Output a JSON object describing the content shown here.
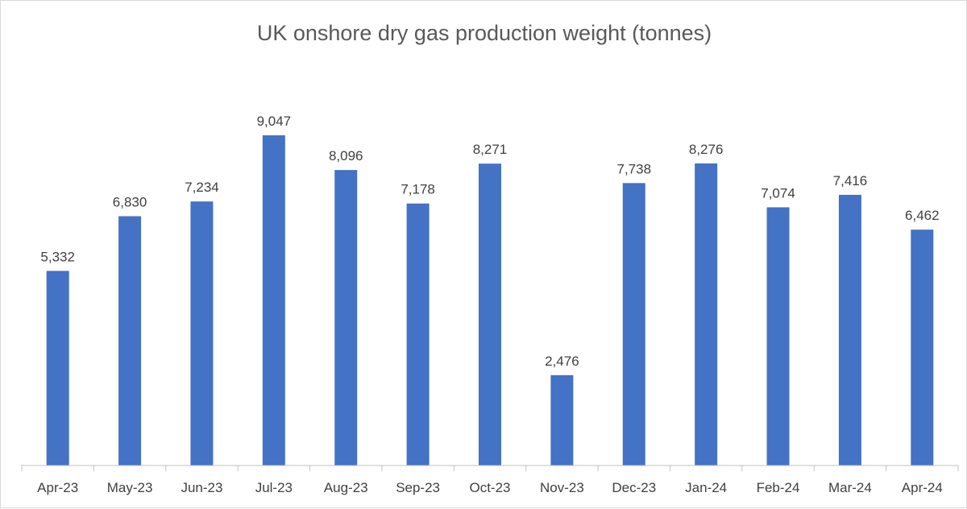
{
  "chart_data": {
    "type": "bar",
    "title": "UK onshore dry gas production weight (tonnes)",
    "xlabel": "",
    "ylabel": "",
    "categories": [
      "Apr-23",
      "May-23",
      "Jun-23",
      "Jul-23",
      "Aug-23",
      "Sep-23",
      "Oct-23",
      "Nov-23",
      "Dec-23",
      "Jan-24",
      "Feb-24",
      "Mar-24",
      "Apr-24"
    ],
    "values": [
      5332,
      6830,
      7234,
      9047,
      8096,
      7178,
      8271,
      2476,
      7738,
      8276,
      7074,
      7416,
      6462
    ],
    "value_labels": [
      "5,332",
      "6,830",
      "7,234",
      "9,047",
      "8,096",
      "7,178",
      "8,271",
      "2,476",
      "7,738",
      "8,276",
      "7,074",
      "7,416",
      "6,462"
    ],
    "ylim": [
      0,
      9047
    ],
    "grid": false,
    "legend": "none",
    "bar_color": "#4472C4",
    "axis_color": "#bfbfbf"
  }
}
